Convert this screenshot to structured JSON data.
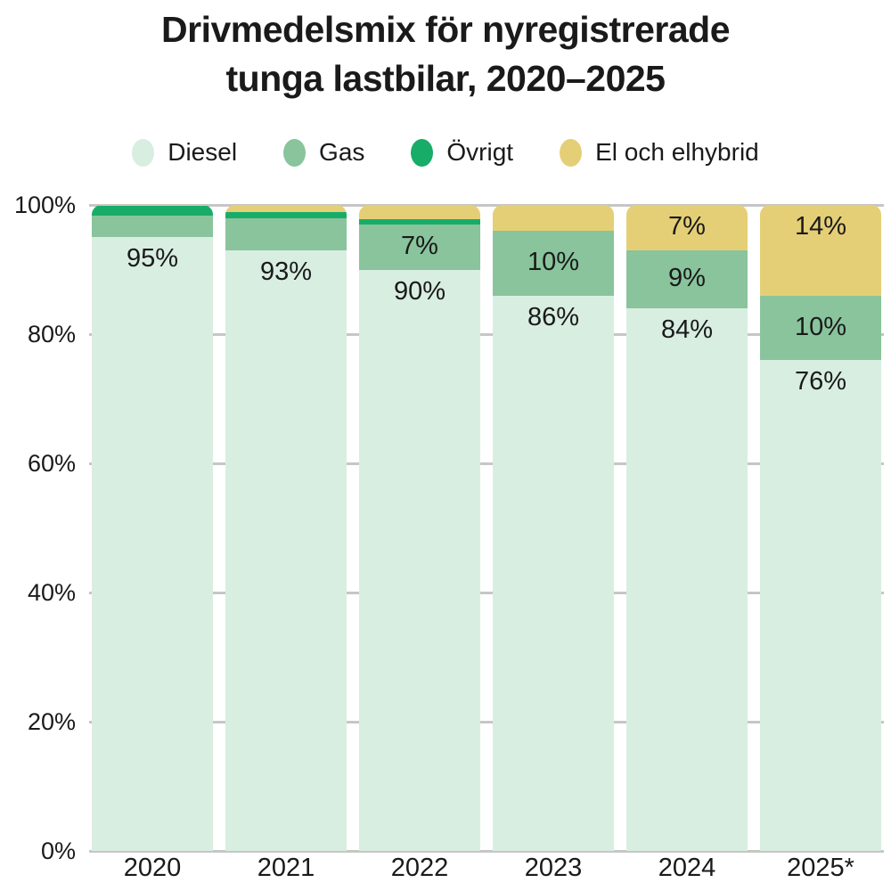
{
  "chart_data": {
    "type": "bar",
    "variant": "stacked-100-percent",
    "title_lines": [
      "Drivmedelsmix för nyregistrerade",
      "tunga lastbilar, 2020–2025"
    ],
    "categories": [
      "2020",
      "2021",
      "2022",
      "2023",
      "2024",
      "2025*"
    ],
    "series": [
      {
        "name": "Diesel",
        "color": "#d8eee1",
        "values": [
          95,
          93,
          90,
          86,
          84,
          76
        ],
        "labels": [
          "95%",
          "93%",
          "90%",
          "86%",
          "84%",
          "76%"
        ]
      },
      {
        "name": "Gas",
        "color": "#89c49c",
        "values": [
          3.4,
          5,
          7,
          10,
          9,
          10
        ],
        "labels": [
          null,
          null,
          "7%",
          "10%",
          "9%",
          "10%"
        ]
      },
      {
        "name": "Övrigt",
        "color": "#17ad68",
        "values": [
          1.4,
          0.9,
          0.8,
          0,
          0,
          0
        ],
        "labels": [
          null,
          null,
          null,
          null,
          null,
          null
        ]
      },
      {
        "name": "El och elhybrid",
        "color": "#e5cf76",
        "values": [
          0.2,
          1.1,
          2.2,
          4,
          7,
          14
        ],
        "labels": [
          null,
          null,
          null,
          null,
          "7%",
          "14%"
        ]
      }
    ],
    "stack_order": "bottom-to-top follows series order",
    "ylabel_ticks": [
      "0%",
      "20%",
      "40%",
      "60%",
      "80%",
      "100%"
    ],
    "ylim": [
      0,
      100
    ],
    "grid": true,
    "gridline_color": "#c6c6c6",
    "legend_position": "top",
    "text_color": "#1a1a1a"
  }
}
